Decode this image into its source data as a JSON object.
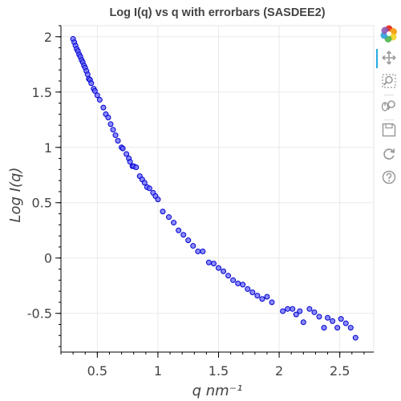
{
  "chart_data": {
    "type": "scatter",
    "title": "Log I(q) vs q with errorbars (SASDEE2)",
    "xlabel": "q nm⁻¹",
    "ylabel": "Log I(q)",
    "xlim": [
      0.2,
      2.78
    ],
    "ylim": [
      -0.85,
      2.1
    ],
    "x_ticks": [
      0.5,
      1,
      1.5,
      2,
      2.5
    ],
    "x_tick_labels": [
      "0.5",
      "1",
      "1.5",
      "2",
      "2.5"
    ],
    "y_ticks": [
      -0.5,
      0,
      0.5,
      1,
      1.5,
      2
    ],
    "y_tick_labels": [
      "-0.5",
      "0",
      "0.5",
      "1",
      "1.5",
      "2"
    ],
    "grid": true,
    "marker_fill": "#6464ff",
    "marker_stroke": "#0000cc",
    "points": [
      [
        0.3,
        1.98
      ],
      [
        0.31,
        1.95
      ],
      [
        0.32,
        1.92
      ],
      [
        0.33,
        1.89
      ],
      [
        0.34,
        1.87
      ],
      [
        0.35,
        1.84
      ],
      [
        0.36,
        1.82
      ],
      [
        0.37,
        1.79
      ],
      [
        0.38,
        1.77
      ],
      [
        0.39,
        1.74
      ],
      [
        0.4,
        1.72
      ],
      [
        0.41,
        1.69
      ],
      [
        0.42,
        1.66
      ],
      [
        0.43,
        1.62
      ],
      [
        0.44,
        1.61
      ],
      [
        0.45,
        1.58
      ],
      [
        0.47,
        1.53
      ],
      [
        0.48,
        1.51
      ],
      [
        0.5,
        1.47
      ],
      [
        0.52,
        1.43
      ],
      [
        0.55,
        1.36
      ],
      [
        0.57,
        1.3
      ],
      [
        0.59,
        1.27
      ],
      [
        0.61,
        1.21
      ],
      [
        0.63,
        1.16
      ],
      [
        0.65,
        1.11
      ],
      [
        0.67,
        1.06
      ],
      [
        0.7,
        1.0
      ],
      [
        0.71,
        0.99
      ],
      [
        0.74,
        0.94
      ],
      [
        0.76,
        0.9
      ],
      [
        0.77,
        0.87
      ],
      [
        0.79,
        0.83
      ],
      [
        0.8,
        0.83
      ],
      [
        0.82,
        0.82
      ],
      [
        0.85,
        0.74
      ],
      [
        0.87,
        0.71
      ],
      [
        0.89,
        0.68
      ],
      [
        0.91,
        0.64
      ],
      [
        0.93,
        0.63
      ],
      [
        0.96,
        0.59
      ],
      [
        0.98,
        0.56
      ],
      [
        1.0,
        0.53
      ],
      [
        1.04,
        0.42
      ],
      [
        1.09,
        0.37
      ],
      [
        1.13,
        0.32
      ],
      [
        1.17,
        0.25
      ],
      [
        1.21,
        0.21
      ],
      [
        1.25,
        0.16
      ],
      [
        1.29,
        0.11
      ],
      [
        1.33,
        0.06
      ],
      [
        1.37,
        0.06
      ],
      [
        1.42,
        -0.04
      ],
      [
        1.46,
        -0.05
      ],
      [
        1.5,
        -0.09
      ],
      [
        1.54,
        -0.12
      ],
      [
        1.58,
        -0.16
      ],
      [
        1.62,
        -0.2
      ],
      [
        1.66,
        -0.23
      ],
      [
        1.7,
        -0.24
      ],
      [
        1.74,
        -0.28
      ],
      [
        1.78,
        -0.31
      ],
      [
        1.82,
        -0.34
      ],
      [
        1.86,
        -0.37
      ],
      [
        1.9,
        -0.35
      ],
      [
        1.94,
        -0.4
      ],
      [
        2.03,
        -0.48
      ],
      [
        2.07,
        -0.46
      ],
      [
        2.11,
        -0.46
      ],
      [
        2.14,
        -0.51
      ],
      [
        2.17,
        -0.48
      ],
      [
        2.2,
        -0.58
      ],
      [
        2.25,
        -0.46
      ],
      [
        2.29,
        -0.49
      ],
      [
        2.33,
        -0.53
      ],
      [
        2.37,
        -0.63
      ],
      [
        2.4,
        -0.54
      ],
      [
        2.44,
        -0.57
      ],
      [
        2.48,
        -0.63
      ],
      [
        2.51,
        -0.55
      ],
      [
        2.55,
        -0.59
      ],
      [
        2.59,
        -0.63
      ],
      [
        2.63,
        -0.72
      ]
    ]
  },
  "toolbar": {
    "tools": [
      "bokeh-logo-icon",
      "pan-icon",
      "box-zoom-icon",
      "wheel-zoom-icon",
      "save-icon",
      "reset-icon",
      "help-icon"
    ],
    "active_tool": "pan-icon"
  }
}
